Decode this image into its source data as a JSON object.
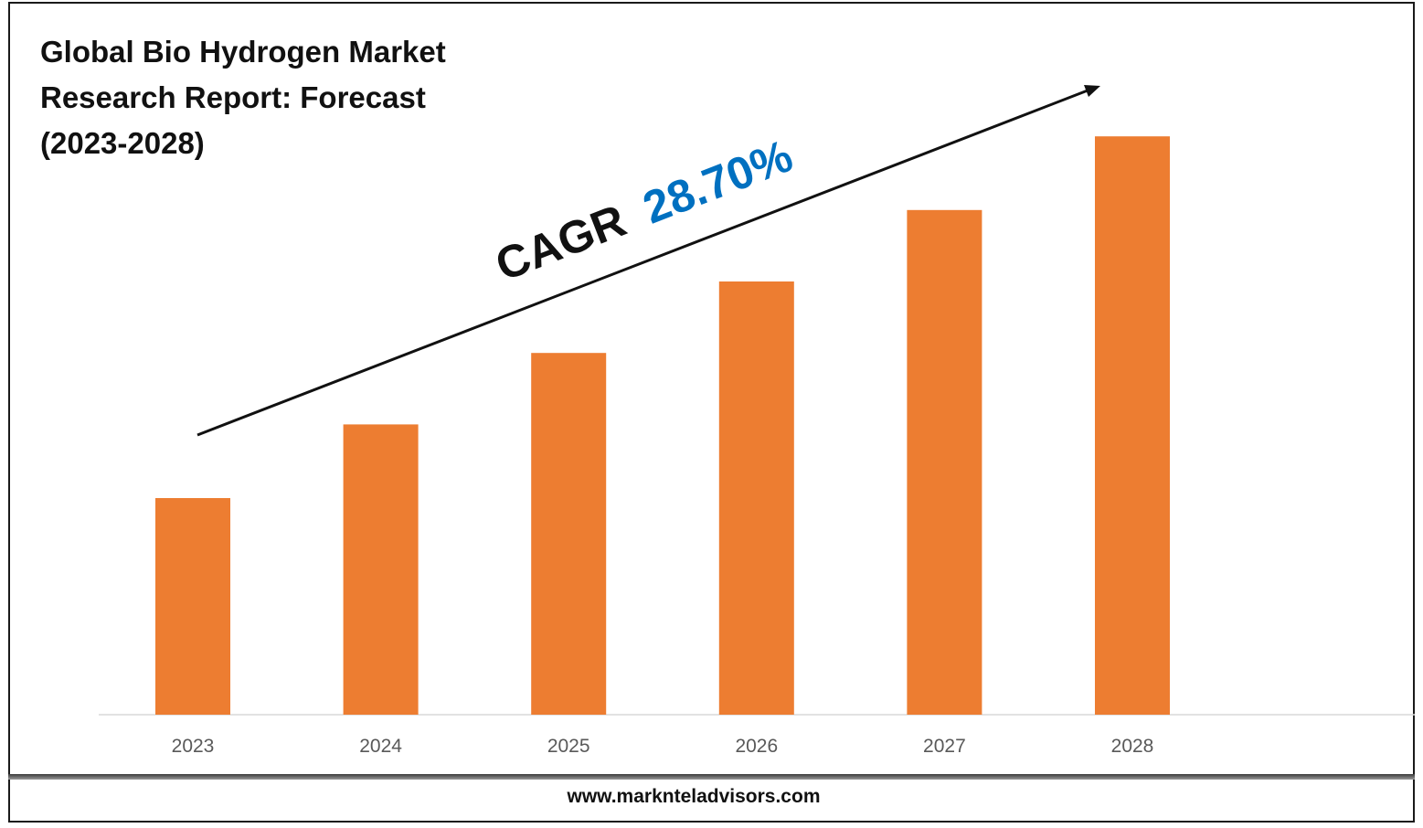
{
  "title_lines": [
    "Global Bio Hydrogen Market",
    "Research Report: Forecast",
    "(2023-2028)"
  ],
  "footer_url": "www.marknteladvisors.com",
  "cagr": {
    "prefix": "CAGR",
    "value": "28.70%"
  },
  "colors": {
    "bar": "#ED7D31",
    "cagr_value": "#0070C0",
    "text": "#111111",
    "tick": "#595959",
    "axis": "#D9D9D9"
  },
  "chart_data": {
    "type": "bar",
    "categories": [
      "2023",
      "2024",
      "2025",
      "2026",
      "2027",
      "2028"
    ],
    "values": [
      1.0,
      1.34,
      1.67,
      2.0,
      2.33,
      2.67
    ],
    "value_note": "relative heights; no value axis printed",
    "title": "Global Bio Hydrogen Market Research Report: Forecast (2023-2028)",
    "xlabel": "",
    "ylabel": "",
    "grid": false,
    "legend": "none"
  }
}
